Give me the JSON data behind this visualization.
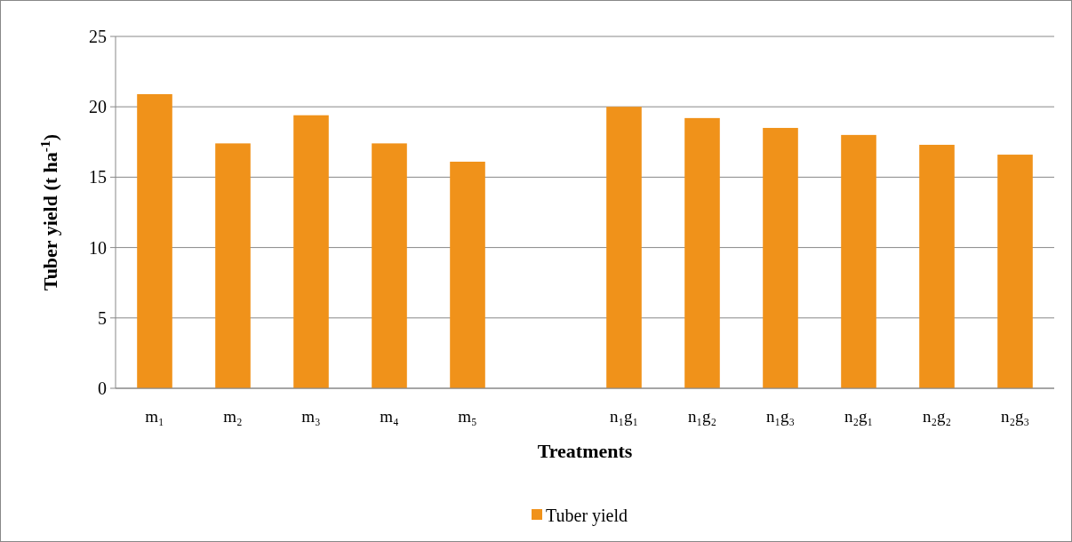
{
  "chart_data": {
    "type": "bar",
    "xlabel": "Treatments",
    "ylabel": "Tuber yield (t ha$^{-1}$)",
    "categories": [
      "m₁",
      "m₂",
      "m₃",
      "m₄",
      "m₅",
      null,
      "n₁g₁",
      "n₁g₂",
      "n₁g₃",
      "n₂g₁",
      "n₂g₂",
      "n₂g₃"
    ],
    "series": [
      {
        "name": "Tuber yield",
        "color": "#f0921a",
        "values": [
          20.9,
          17.4,
          19.4,
          17.4,
          16.1,
          null,
          20.0,
          19.2,
          18.5,
          18.0,
          17.3,
          16.6
        ]
      }
    ],
    "ylim": [
      0,
      25
    ],
    "yticks": [
      0,
      5,
      10,
      15,
      20,
      25
    ],
    "grid": "y",
    "legend": "bottom"
  }
}
